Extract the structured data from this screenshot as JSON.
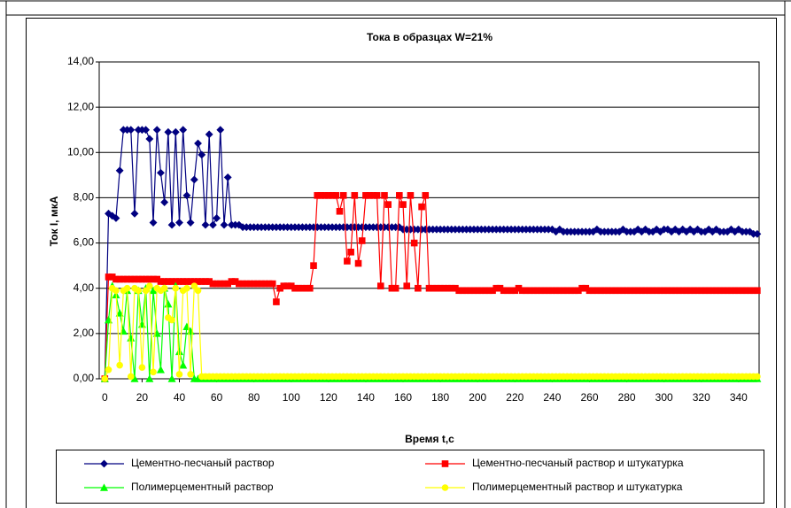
{
  "chart_data": {
    "type": "line",
    "title": "Тока в образцах W=21%",
    "xlabel": "Время t,c",
    "ylabel": "Ток I, мкА",
    "legend": "bottom",
    "grid": true,
    "xlim": [
      -3,
      351
    ],
    "ylim": [
      0,
      14
    ],
    "xticks": [
      0,
      20,
      40,
      60,
      80,
      100,
      120,
      140,
      160,
      180,
      200,
      220,
      240,
      260,
      280,
      300,
      320,
      340
    ],
    "yticks": [
      {
        "value": 0,
        "label": "0,00"
      },
      {
        "value": 2,
        "label": "2,00"
      },
      {
        "value": 4,
        "label": "4,00"
      },
      {
        "value": 6,
        "label": "6,00"
      },
      {
        "value": 8,
        "label": "8,00"
      },
      {
        "value": 10,
        "label": "10,00"
      },
      {
        "value": 12,
        "label": "12,00"
      },
      {
        "value": 14,
        "label": "14,00"
      }
    ],
    "x": [
      0,
      2,
      4,
      6,
      8,
      10,
      12,
      14,
      16,
      18,
      20,
      22,
      24,
      26,
      28,
      30,
      32,
      34,
      36,
      38,
      40,
      42,
      44,
      46,
      48,
      50,
      52,
      54,
      56,
      58,
      60,
      62,
      64,
      66,
      68,
      70,
      72,
      74,
      76,
      78,
      80,
      82,
      84,
      86,
      88,
      90,
      92,
      94,
      96,
      98,
      100,
      102,
      104,
      106,
      108,
      110,
      112,
      114,
      116,
      118,
      120,
      122,
      124,
      126,
      128,
      130,
      132,
      134,
      136,
      138,
      140,
      142,
      144,
      146,
      148,
      150,
      152,
      154,
      156,
      158,
      160,
      162,
      164,
      166,
      168,
      170,
      172,
      174,
      176,
      178,
      180,
      182,
      184,
      186,
      188,
      190,
      192,
      194,
      196,
      198,
      200,
      202,
      204,
      206,
      208,
      210,
      212,
      214,
      216,
      218,
      220,
      222,
      224,
      226,
      228,
      230,
      232,
      234,
      236,
      238,
      240,
      242,
      244,
      246,
      248,
      250,
      252,
      254,
      256,
      258,
      260,
      262,
      264,
      266,
      268,
      270,
      272,
      274,
      276,
      278,
      280,
      282,
      284,
      286,
      288,
      290,
      292,
      294,
      296,
      298,
      300,
      302,
      304,
      306,
      308,
      310,
      312,
      314,
      316,
      318,
      320,
      322,
      324,
      326,
      328,
      330,
      332,
      334,
      336,
      338,
      340,
      342,
      344,
      346,
      348,
      350
    ],
    "series": [
      {
        "name": "Цементно-песчаный раствор",
        "color": "#000080",
        "marker": "diamond",
        "values": [
          0,
          7.3,
          7.2,
          7.1,
          9.2,
          11,
          11,
          11,
          7.3,
          11,
          11,
          11,
          10.6,
          6.9,
          11,
          9.1,
          7.8,
          10.9,
          6.8,
          10.9,
          6.9,
          11,
          8.1,
          6.9,
          8.8,
          10.4,
          9.9,
          6.8,
          10.8,
          6.8,
          7.1,
          11,
          6.8,
          8.9,
          6.8,
          6.8,
          6.8,
          6.7,
          6.7,
          6.7,
          6.7,
          6.7,
          6.7,
          6.7,
          6.7,
          6.7,
          6.7,
          6.7,
          6.7,
          6.7,
          6.7,
          6.7,
          6.7,
          6.7,
          6.7,
          6.7,
          6.7,
          6.7,
          6.7,
          6.7,
          6.7,
          6.7,
          6.7,
          6.7,
          6.7,
          6.7,
          6.7,
          6.7,
          6.7,
          6.7,
          6.7,
          6.7,
          6.7,
          6.7,
          6.7,
          6.7,
          6.7,
          6.7,
          6.7,
          6.7,
          6.6,
          6.6,
          6.6,
          6.6,
          6.6,
          6.6,
          6.6,
          6.6,
          6.6,
          6.6,
          6.6,
          6.6,
          6.6,
          6.6,
          6.6,
          6.6,
          6.6,
          6.6,
          6.6,
          6.6,
          6.6,
          6.6,
          6.6,
          6.6,
          6.6,
          6.6,
          6.6,
          6.6,
          6.6,
          6.6,
          6.6,
          6.6,
          6.6,
          6.6,
          6.6,
          6.6,
          6.6,
          6.6,
          6.6,
          6.6,
          6.6,
          6.5,
          6.6,
          6.5,
          6.5,
          6.5,
          6.5,
          6.5,
          6.5,
          6.5,
          6.5,
          6.5,
          6.6,
          6.5,
          6.5,
          6.5,
          6.5,
          6.5,
          6.5,
          6.6,
          6.5,
          6.5,
          6.5,
          6.6,
          6.5,
          6.6,
          6.5,
          6.5,
          6.6,
          6.5,
          6.6,
          6.6,
          6.5,
          6.6,
          6.5,
          6.6,
          6.5,
          6.6,
          6.5,
          6.6,
          6.5,
          6.5,
          6.6,
          6.5,
          6.6,
          6.5,
          6.5,
          6.5,
          6.6,
          6.5,
          6.6,
          6.5,
          6.5,
          6.5,
          6.4,
          6.4
        ]
      },
      {
        "name": "Цементно-песчаный раствор и штукатурка",
        "color": "#ff0000",
        "marker": "square",
        "values": [
          0,
          4.5,
          4.5,
          4.4,
          4.4,
          4.4,
          4.4,
          4.4,
          4.4,
          4.4,
          4.4,
          4.4,
          4.4,
          4.4,
          4.4,
          4.3,
          4.3,
          4.3,
          4.3,
          4.3,
          4.3,
          4.3,
          4.3,
          4.3,
          4.3,
          4.3,
          4.3,
          4.3,
          4.3,
          4.2,
          4.2,
          4.2,
          4.2,
          4.2,
          4.3,
          4.3,
          4.2,
          4.2,
          4.2,
          4.2,
          4.2,
          4.2,
          4.2,
          4.2,
          4.2,
          4.2,
          3.4,
          4.0,
          4.1,
          4.1,
          4.1,
          4.0,
          4.0,
          4.0,
          4.0,
          4.0,
          5.0,
          8.1,
          8.1,
          8.1,
          8.1,
          8.1,
          8.1,
          7.4,
          8.1,
          5.2,
          5.6,
          8.1,
          5.1,
          6.1,
          8.1,
          8.1,
          8.1,
          8.1,
          4.1,
          8.1,
          7.7,
          4.0,
          4.0,
          8.1,
          7.7,
          4.1,
          8.1,
          6.0,
          4.0,
          7.6,
          8.1,
          4.0,
          4.0,
          4.0,
          4.0,
          4.0,
          4.0,
          4.0,
          4.0,
          3.9,
          3.9,
          3.9,
          3.9,
          3.9,
          3.9,
          3.9,
          3.9,
          3.9,
          3.9,
          4.0,
          4.0,
          3.9,
          3.9,
          3.9,
          3.9,
          4.0,
          3.9,
          3.9,
          3.9,
          3.9,
          3.9,
          3.9,
          3.9,
          3.9,
          3.9,
          3.9,
          3.9,
          3.9,
          3.9,
          3.9,
          3.9,
          3.9,
          4.0,
          4.0,
          3.9,
          3.9,
          3.9,
          3.9,
          3.9,
          3.9,
          3.9,
          3.9,
          3.9,
          3.9,
          3.9,
          3.9,
          3.9,
          3.9,
          3.9,
          3.9,
          3.9,
          3.9,
          3.9,
          3.9,
          3.9,
          3.9,
          3.9,
          3.9,
          3.9,
          3.9,
          3.9,
          3.9,
          3.9,
          3.9,
          3.9,
          3.9,
          3.9,
          3.9,
          3.9,
          3.9,
          3.9,
          3.9,
          3.9,
          3.9,
          3.9,
          3.9,
          3.9,
          3.9,
          3.9,
          3.9
        ]
      },
      {
        "name": "Полимерцементный раствор",
        "color": "#00ff00",
        "marker": "triangle",
        "values": [
          0,
          2.6,
          4.1,
          3.7,
          2.9,
          2.1,
          3.9,
          1.8,
          0,
          3.9,
          2.4,
          4.0,
          0,
          3.9,
          2.0,
          0.4,
          4.0,
          3.3,
          0,
          4.1,
          1.2,
          0.6,
          2.3,
          2.1,
          0,
          0,
          0,
          0,
          0,
          0,
          0,
          0,
          0,
          0,
          0,
          0,
          0,
          0,
          0,
          0,
          0,
          0,
          0,
          0,
          0,
          0,
          0,
          0,
          0,
          0,
          0,
          0,
          0,
          0,
          0,
          0,
          0,
          0,
          0,
          0,
          0,
          0,
          0,
          0,
          0,
          0,
          0,
          0,
          0,
          0,
          0,
          0,
          0,
          0,
          0,
          0,
          0,
          0,
          0,
          0,
          0,
          0,
          0,
          0,
          0,
          0,
          0,
          0,
          0,
          0,
          0,
          0,
          0,
          0,
          0,
          0,
          0,
          0,
          0,
          0,
          0,
          0,
          0,
          0,
          0,
          0,
          0,
          0,
          0,
          0,
          0,
          0,
          0,
          0,
          0,
          0,
          0,
          0,
          0,
          0,
          0,
          0,
          0,
          0,
          0,
          0,
          0,
          0,
          0,
          0,
          0,
          0,
          0,
          0,
          0,
          0,
          0,
          0,
          0,
          0,
          0,
          0,
          0,
          0,
          0,
          0,
          0,
          0,
          0,
          0,
          0,
          0,
          0,
          0,
          0,
          0,
          0,
          0,
          0,
          0,
          0,
          0,
          0,
          0,
          0,
          0,
          0,
          0,
          0,
          0,
          0,
          0,
          0,
          0,
          0,
          0
        ]
      },
      {
        "name": "Полимерцементный раствор и штукатурка",
        "color": "#ffff00",
        "marker": "circle",
        "values": [
          0,
          0.4,
          4.0,
          3.9,
          0.6,
          3.9,
          4.0,
          0.1,
          4.0,
          3.9,
          0.5,
          3.9,
          4.1,
          0.3,
          4.0,
          3.9,
          4.0,
          2.7,
          2.6,
          4.0,
          0.2,
          3.9,
          4.0,
          0.2,
          4.1,
          3.9,
          0.1,
          0.1,
          0.1,
          0.1,
          0.1,
          0.1,
          0.1,
          0.1,
          0.1,
          0.1,
          0.1,
          0.1,
          0.1,
          0.1,
          0.1,
          0.1,
          0.1,
          0.1,
          0.1,
          0.1,
          0.1,
          0.1,
          0.1,
          0.1,
          0.1,
          0.1,
          0.1,
          0.1,
          0.1,
          0.1,
          0.1,
          0.1,
          0.1,
          0.1,
          0.1,
          0.1,
          0.1,
          0.1,
          0.1,
          0.1,
          0.1,
          0.1,
          0.1,
          0.1,
          0.1,
          0.1,
          0.1,
          0.1,
          0.1,
          0.1,
          0.1,
          0.1,
          0.1,
          0.1,
          0.1,
          0.1,
          0.1,
          0.1,
          0.1,
          0.1,
          0.1,
          0.1,
          0.1,
          0.1,
          0.1,
          0.1,
          0.1,
          0.1,
          0.1,
          0.1,
          0.1,
          0.1,
          0.1,
          0.1,
          0.1,
          0.1,
          0.1,
          0.1,
          0.1,
          0.1,
          0.1,
          0.1,
          0.1,
          0.1,
          0.1,
          0.1,
          0.1,
          0.1,
          0.1,
          0.1,
          0.1,
          0.1,
          0.1,
          0.1,
          0.1,
          0.1,
          0.1,
          0.1,
          0.1,
          0.1,
          0.1,
          0.1,
          0.1,
          0.1,
          0.1,
          0.1,
          0.1,
          0.1,
          0.1,
          0.1,
          0.1,
          0.1,
          0.1,
          0.1,
          0.1,
          0.1,
          0.1,
          0.1,
          0.1,
          0.1,
          0.1,
          0.1,
          0.1,
          0.1,
          0.1,
          0.1,
          0.1,
          0.1,
          0.1,
          0.1,
          0.1,
          0.1,
          0.1,
          0.1,
          0.1,
          0.1,
          0.1,
          0.1,
          0.1,
          0.1,
          0.1,
          0.1,
          0.1,
          0.1,
          0.1,
          0.1,
          0.1,
          0.1,
          0.1,
          0.1
        ]
      }
    ]
  }
}
